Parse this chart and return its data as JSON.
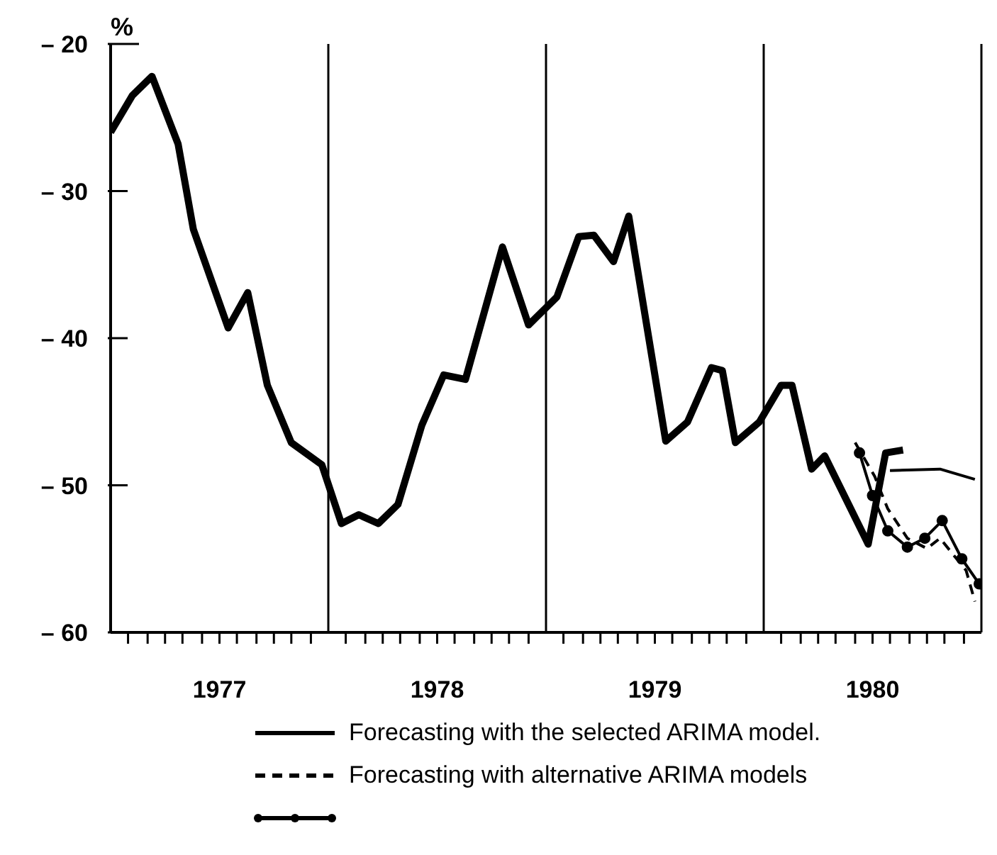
{
  "chart_data": {
    "type": "line",
    "ylabel": "%",
    "xlim": [
      1977,
      1981
    ],
    "ylim": [
      -60,
      -20
    ],
    "yticks": [
      {
        "value": -60,
        "label": "– 60"
      },
      {
        "value": -50,
        "label": "– 50"
      },
      {
        "value": -40,
        "label": "– 40"
      },
      {
        "value": -30,
        "label": "– 30"
      },
      {
        "value": -20,
        "label": "– 20"
      }
    ],
    "xticks": [
      {
        "value": 1977.08,
        "label": null
      },
      {
        "value": 1977.17,
        "label": null
      },
      {
        "value": 1977.25,
        "label": null
      },
      {
        "value": 1977.33,
        "label": null
      },
      {
        "value": 1977.42,
        "label": null
      },
      {
        "value": 1977.5,
        "label": "1977"
      },
      {
        "value": 1977.58,
        "label": null
      },
      {
        "value": 1977.67,
        "label": null
      },
      {
        "value": 1977.75,
        "label": null
      },
      {
        "value": 1977.83,
        "label": null
      },
      {
        "value": 1977.92,
        "label": null
      },
      {
        "value": 1978.08,
        "label": null
      },
      {
        "value": 1978.17,
        "label": null
      },
      {
        "value": 1978.25,
        "label": null
      },
      {
        "value": 1978.33,
        "label": null
      },
      {
        "value": 1978.42,
        "label": null
      },
      {
        "value": 1978.5,
        "label": "1978"
      },
      {
        "value": 1978.58,
        "label": null
      },
      {
        "value": 1978.67,
        "label": null
      },
      {
        "value": 1978.75,
        "label": null
      },
      {
        "value": 1978.83,
        "label": null
      },
      {
        "value": 1978.92,
        "label": null
      },
      {
        "value": 1979.08,
        "label": null
      },
      {
        "value": 1979.17,
        "label": null
      },
      {
        "value": 1979.25,
        "label": null
      },
      {
        "value": 1979.33,
        "label": null
      },
      {
        "value": 1979.42,
        "label": null
      },
      {
        "value": 1979.5,
        "label": "1979"
      },
      {
        "value": 1979.58,
        "label": null
      },
      {
        "value": 1979.67,
        "label": null
      },
      {
        "value": 1979.75,
        "label": null
      },
      {
        "value": 1979.83,
        "label": null
      },
      {
        "value": 1979.92,
        "label": null
      },
      {
        "value": 1980.08,
        "label": null
      },
      {
        "value": 1980.17,
        "label": null
      },
      {
        "value": 1980.25,
        "label": null
      },
      {
        "value": 1980.33,
        "label": null
      },
      {
        "value": 1980.42,
        "label": null
      },
      {
        "value": 1980.5,
        "label": "1980"
      },
      {
        "value": 1980.58,
        "label": null
      },
      {
        "value": 1980.67,
        "label": null
      },
      {
        "value": 1980.75,
        "label": null
      },
      {
        "value": 1980.83,
        "label": null
      },
      {
        "value": 1980.92,
        "label": null
      }
    ],
    "ref_lines": [
      {
        "axis": "x",
        "value": 1978,
        "color": "#000000"
      },
      {
        "axis": "x",
        "value": 1979,
        "color": "#000000"
      },
      {
        "axis": "x",
        "value": 1980,
        "color": "#000000"
      },
      {
        "axis": "x",
        "value": 1981,
        "color": "#000000"
      }
    ],
    "legend": "bottom",
    "series": [
      {
        "color": "#000000",
        "marker": "none",
        "line_style": "solid",
        "x": [
          1977.0,
          1977.1,
          1977.19,
          1977.31,
          1977.38,
          1977.54,
          1977.63,
          1977.72,
          1977.83,
          1977.97,
          1978.06,
          1978.14,
          1978.23,
          1978.32,
          1978.43,
          1978.53,
          1978.63,
          1978.8,
          1978.92,
          1979.05,
          1979.15,
          1979.22,
          1979.31,
          1979.38,
          1979.55,
          1979.65,
          1979.76,
          1979.81,
          1979.87,
          1979.98,
          1980.08,
          1980.13,
          1980.22,
          1980.28,
          1980.48,
          1980.56,
          1980.64
        ],
        "values": [
          -26.0,
          -23.5,
          -22.2,
          -26.8,
          -32.6,
          -39.3,
          -36.9,
          -43.2,
          -47.1,
          -48.6,
          -52.6,
          -52.0,
          -52.6,
          -51.3,
          -45.9,
          -42.5,
          -42.8,
          -33.8,
          -39.1,
          -37.2,
          -33.1,
          -33.0,
          -34.8,
          -31.7,
          -47.0,
          -45.7,
          -42.0,
          -42.2,
          -47.1,
          -45.7,
          -43.2,
          -43.2,
          -48.9,
          -48.0,
          -54.0,
          -47.8,
          -47.6
        ]
      },
      {
        "name": "Forecasting with the selected ARIMA model.",
        "color": "#000000",
        "marker": "none",
        "line_style": "solid",
        "x": [
          1980.58,
          1980.81,
          1980.97
        ],
        "values": [
          -49.0,
          -48.9,
          -49.6
        ]
      },
      {
        "name": "Forecasting with alternative ARIMA models",
        "color": "#000000",
        "marker": "none",
        "line_style": "dashed",
        "x": [
          1980.42,
          1980.51,
          1980.57,
          1980.66,
          1980.75,
          1980.81,
          1980.93,
          1980.97
        ],
        "values": [
          -47.1,
          -49.4,
          -51.6,
          -53.6,
          -54.3,
          -53.6,
          -55.8,
          -57.9
        ]
      },
      {
        "color": "#000000",
        "marker": "circle",
        "line_style": "solid",
        "x": [
          1980.44,
          1980.5,
          1980.57,
          1980.66,
          1980.74,
          1980.82,
          1980.91,
          1980.99
        ],
        "values": [
          -47.8,
          -50.7,
          -53.1,
          -54.2,
          -53.6,
          -52.4,
          -55.0,
          -56.7
        ]
      }
    ]
  }
}
